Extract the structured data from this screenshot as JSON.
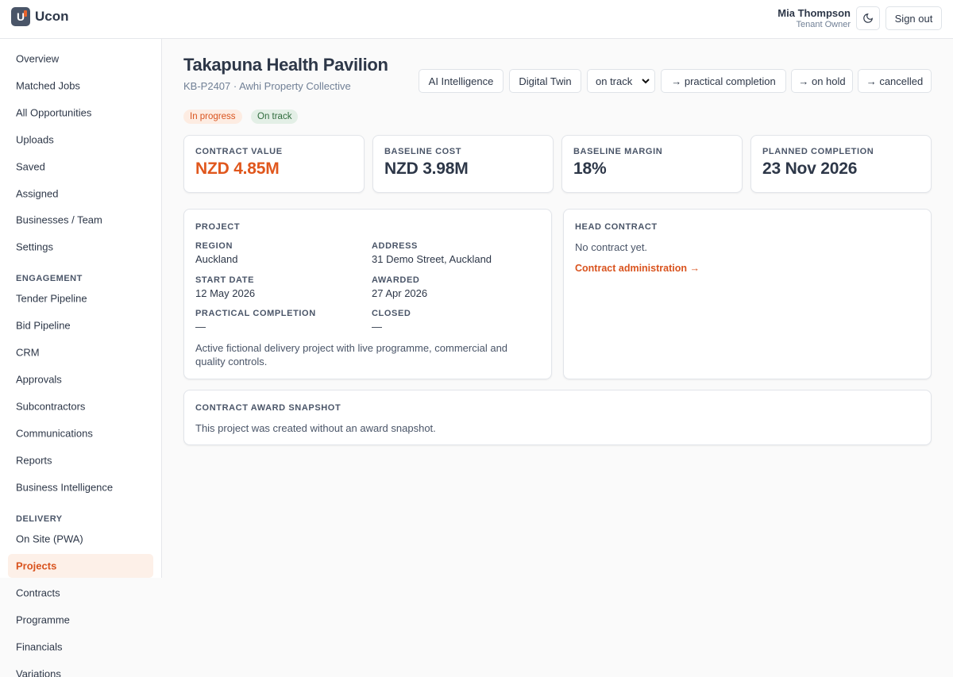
{
  "header": {
    "logo": "U",
    "brand": "Ucon",
    "user_name": "Mia Thompson",
    "user_role": "Tenant Owner",
    "sign_out": "Sign out"
  },
  "sidebar": {
    "items": [
      "Overview",
      "Matched Jobs",
      "All Opportunities",
      "Uploads",
      "Saved",
      "Assigned",
      "Businesses / Team",
      "Settings"
    ],
    "sections": [
      {
        "title": "ENGAGEMENT",
        "items": [
          "Tender Pipeline",
          "Bid Pipeline",
          "CRM",
          "Approvals",
          "Subcontractors",
          "Communications",
          "Reports",
          "Business Intelligence"
        ]
      },
      {
        "title": "DELIVERY",
        "items": [
          "On Site (PWA)",
          "Projects",
          "Contracts",
          "Programme",
          "Financials",
          "Variations"
        ]
      }
    ],
    "active": "Projects"
  },
  "project": {
    "title": "Takapuna Health Pavilion",
    "subtitle": "KB-P2407 · Awhi Property Collective",
    "actions": [
      "AI Intelligence",
      "Digital Twin"
    ],
    "status_select": "on track",
    "transitions": [
      "→ practical completion",
      "→ on hold",
      "→ cancelled"
    ],
    "badges": [
      "In progress",
      "On track"
    ]
  },
  "stats": [
    {
      "label": "CONTRACT VALUE",
      "value": "NZD 4.85M"
    },
    {
      "label": "BASELINE COST",
      "value": "NZD 3.98M"
    },
    {
      "label": "BASELINE MARGIN",
      "value": "18%"
    },
    {
      "label": "PLANNED COMPLETION",
      "value": "23 Nov 2026"
    }
  ],
  "project_card": {
    "heading": "PROJECT",
    "fields": [
      {
        "label": "REGION",
        "value": "Auckland"
      },
      {
        "label": "ADDRESS",
        "value": "31 Demo Street, Auckland"
      },
      {
        "label": "START DATE",
        "value": "12 May 2026"
      },
      {
        "label": "AWARDED",
        "value": "27 Apr 2026"
      },
      {
        "label": "PRACTICAL COMPLETION",
        "value": "—"
      },
      {
        "label": "CLOSED",
        "value": "—"
      }
    ],
    "description": "Active fictional delivery project with live programme, commercial and quality controls."
  },
  "head_contract": {
    "heading": "HEAD CONTRACT",
    "text": "No contract yet.",
    "link": "Contract administration →"
  },
  "snapshot": {
    "heading": "CONTRACT AWARD SNAPSHOT",
    "text": "This project was created without an award snapshot."
  }
}
